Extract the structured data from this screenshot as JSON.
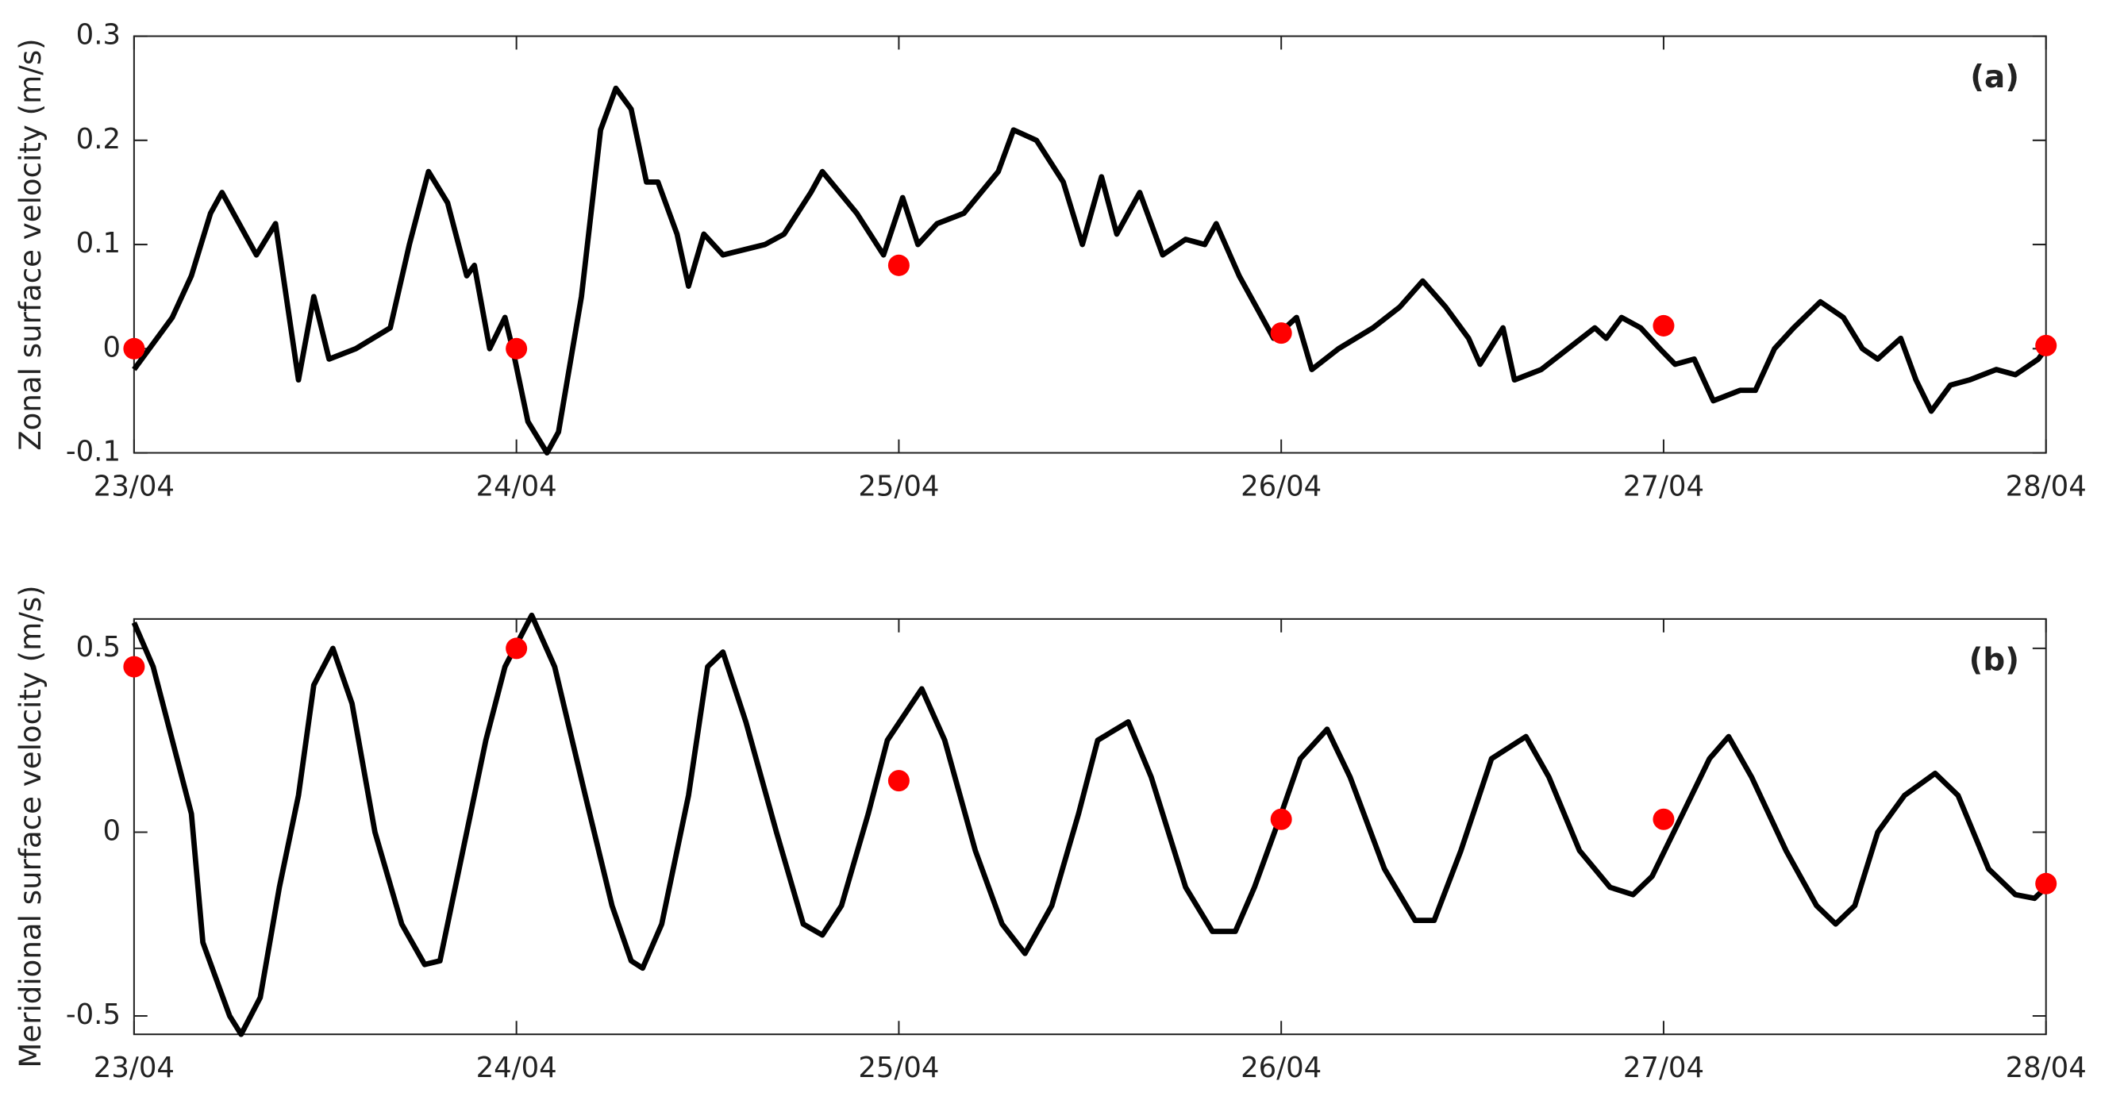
{
  "chart_data": [
    {
      "type": "line",
      "label": "(a)",
      "ylabel": "Zonal surface velocity (m/s)",
      "x": [
        23.0,
        23.05,
        23.1,
        23.15,
        23.2,
        23.23,
        23.32,
        23.37,
        23.43,
        23.47,
        23.51,
        23.58,
        23.67,
        23.72,
        23.77,
        23.82,
        23.87,
        23.89,
        23.93,
        23.97,
        23.99,
        24.03,
        24.08,
        24.11,
        24.17,
        24.22,
        24.26,
        24.3,
        24.34,
        24.37,
        24.42,
        24.45,
        24.49,
        24.54,
        24.65,
        24.7,
        24.77,
        24.8,
        24.89,
        24.96,
        25.01,
        25.05,
        25.1,
        25.17,
        25.26,
        25.3,
        25.36,
        25.43,
        25.48,
        25.53,
        25.57,
        25.63,
        25.69,
        25.75,
        25.8,
        25.83,
        25.89,
        25.98,
        26.04,
        26.08,
        26.15,
        26.24,
        26.31,
        26.37,
        26.43,
        26.49,
        26.52,
        26.58,
        26.61,
        26.68,
        26.75,
        26.82,
        26.85,
        26.89,
        26.94,
        26.99,
        27.03,
        27.08,
        27.13,
        27.2,
        27.24,
        27.29,
        27.34,
        27.41,
        27.47,
        27.52,
        27.56,
        27.62,
        27.66,
        27.7,
        27.75,
        27.8,
        27.87,
        27.92,
        27.98,
        28.0
      ],
      "series": [
        {
          "color": "#000000",
          "values": [
            -0.02,
            0.005,
            0.03,
            0.07,
            0.13,
            0.15,
            0.09,
            0.12,
            -0.03,
            0.05,
            -0.01,
            0.0,
            0.02,
            0.1,
            0.17,
            0.14,
            0.07,
            0.08,
            0.0,
            0.03,
            0.0,
            -0.07,
            -0.1,
            -0.08,
            0.05,
            0.21,
            0.25,
            0.23,
            0.16,
            0.16,
            0.11,
            0.06,
            0.11,
            0.09,
            0.1,
            0.11,
            0.15,
            0.17,
            0.13,
            0.09,
            0.145,
            0.1,
            0.12,
            0.13,
            0.17,
            0.21,
            0.2,
            0.16,
            0.1,
            0.165,
            0.11,
            0.15,
            0.09,
            0.105,
            0.1,
            0.12,
            0.07,
            0.01,
            0.03,
            -0.02,
            0.0,
            0.02,
            0.04,
            0.065,
            0.04,
            0.01,
            -0.015,
            0.02,
            -0.03,
            -0.02,
            0.0,
            0.02,
            0.01,
            0.03,
            0.02,
            0.0,
            -0.015,
            -0.01,
            -0.05,
            -0.04,
            -0.04,
            0.0,
            0.02,
            0.045,
            0.03,
            0.0,
            -0.01,
            0.01,
            -0.03,
            -0.06,
            -0.035,
            -0.03,
            -0.02,
            -0.025,
            -0.01,
            0.0
          ]
        }
      ],
      "markers": {
        "color": "#ff0000",
        "x": [
          23,
          24,
          25,
          26,
          27,
          28
        ],
        "values": [
          0.0,
          0.0,
          0.08,
          0.015,
          0.022,
          0.003
        ]
      },
      "xlim": [
        23,
        28
      ],
      "xticks": [
        {
          "value": 23,
          "label": "23/04"
        },
        {
          "value": 24,
          "label": "24/04"
        },
        {
          "value": 25,
          "label": "25/04"
        },
        {
          "value": 26,
          "label": "26/04"
        },
        {
          "value": 27,
          "label": "27/04"
        },
        {
          "value": 28,
          "label": "28/04"
        }
      ],
      "ylim": [
        -0.1,
        0.3
      ],
      "yticks": [
        -0.1,
        0,
        0.1,
        0.2,
        0.3
      ]
    },
    {
      "type": "line",
      "label": "(b)",
      "ylabel": "Meridional surface velocity (m/s)",
      "x": [
        23.0,
        23.05,
        23.1,
        23.15,
        23.18,
        23.25,
        23.28,
        23.33,
        23.38,
        23.43,
        23.47,
        23.52,
        23.57,
        23.63,
        23.7,
        23.76,
        23.8,
        23.85,
        23.92,
        23.97,
        24.04,
        24.1,
        24.18,
        24.25,
        24.3,
        24.33,
        24.38,
        24.45,
        24.5,
        24.54,
        24.6,
        24.68,
        24.75,
        24.8,
        24.85,
        24.92,
        24.97,
        25.06,
        25.12,
        25.2,
        25.27,
        25.33,
        25.4,
        25.47,
        25.52,
        25.6,
        25.66,
        25.75,
        25.82,
        25.88,
        25.93,
        26.0,
        26.05,
        26.12,
        26.18,
        26.27,
        26.35,
        26.4,
        26.47,
        26.55,
        26.64,
        26.7,
        26.78,
        26.86,
        26.92,
        26.97,
        27.05,
        27.12,
        27.17,
        27.23,
        27.32,
        27.4,
        27.45,
        27.5,
        27.56,
        27.63,
        27.71,
        27.77,
        27.85,
        27.92,
        27.97,
        28.0
      ],
      "series": [
        {
          "color": "#000000",
          "values": [
            0.57,
            0.45,
            0.25,
            0.05,
            -0.3,
            -0.5,
            -0.55,
            -0.45,
            -0.15,
            0.1,
            0.4,
            0.5,
            0.35,
            0.0,
            -0.25,
            -0.36,
            -0.35,
            -0.1,
            0.25,
            0.45,
            0.59,
            0.45,
            0.1,
            -0.2,
            -0.35,
            -0.37,
            -0.25,
            0.1,
            0.45,
            0.49,
            0.3,
            0.0,
            -0.25,
            -0.28,
            -0.2,
            0.05,
            0.25,
            0.39,
            0.25,
            -0.05,
            -0.25,
            -0.33,
            -0.2,
            0.05,
            0.25,
            0.3,
            0.15,
            -0.15,
            -0.27,
            -0.27,
            -0.15,
            0.05,
            0.2,
            0.28,
            0.15,
            -0.1,
            -0.24,
            -0.24,
            -0.05,
            0.2,
            0.26,
            0.15,
            -0.05,
            -0.15,
            -0.17,
            -0.12,
            0.05,
            0.2,
            0.26,
            0.15,
            -0.05,
            -0.2,
            -0.25,
            -0.2,
            0.0,
            0.1,
            0.16,
            0.1,
            -0.1,
            -0.17,
            -0.18,
            -0.15
          ]
        }
      ],
      "markers": {
        "color": "#ff0000",
        "x": [
          23,
          24,
          25,
          26,
          27,
          28
        ],
        "values": [
          0.45,
          0.5,
          0.14,
          0.035,
          0.035,
          -0.14
        ]
      },
      "xlim": [
        23,
        28
      ],
      "xticks": [
        {
          "value": 23,
          "label": "23/04"
        },
        {
          "value": 24,
          "label": "24/04"
        },
        {
          "value": 25,
          "label": "25/04"
        },
        {
          "value": 26,
          "label": "26/04"
        },
        {
          "value": 27,
          "label": "27/04"
        },
        {
          "value": 28,
          "label": "28/04"
        }
      ],
      "ylim": [
        -0.55,
        0.58
      ],
      "yticks": [
        -0.5,
        0,
        0.5
      ]
    }
  ]
}
